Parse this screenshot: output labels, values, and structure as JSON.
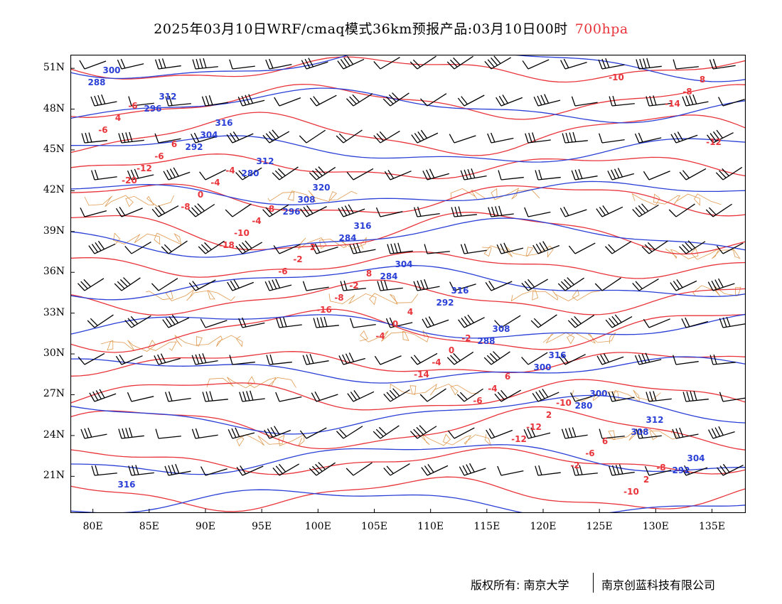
{
  "title": {
    "main": "2025年03月10日WRF/cmaq模式36km预报产品:03月10日00时",
    "level": "700hpa",
    "level_color": "#e8343a"
  },
  "colors": {
    "height_contour": "#2a3fd6",
    "temperature_contour": "#e8343a",
    "boundary": "#e09a50",
    "wind_barb": "#000000",
    "frame": "#000000"
  },
  "axes": {
    "lat_ticks": [
      "51N",
      "48N",
      "45N",
      "42N",
      "39N",
      "36N",
      "33N",
      "30N",
      "27N",
      "24N",
      "21N"
    ],
    "lon_ticks": [
      "80E",
      "85E",
      "90E",
      "95E",
      "100E",
      "105E",
      "110E",
      "115E",
      "120E",
      "125E",
      "130E",
      "135E"
    ],
    "lon_range": [
      78,
      138
    ],
    "lat_range": [
      18.3,
      52
    ]
  },
  "height_labels": [
    "288",
    "292",
    "296",
    "284",
    "288",
    "280",
    "292",
    "296",
    "280",
    "284",
    "292",
    "300",
    "308",
    "300",
    "304",
    "308",
    "304",
    "308",
    "300",
    "304",
    "312",
    "312",
    "316",
    "316",
    "316",
    "312",
    "316",
    "316",
    "320"
  ],
  "temperature_labels": [
    "-20",
    "-18",
    "-16",
    "-14",
    "-12",
    "-10",
    "-12",
    "-8",
    "-6",
    "-4",
    "-6",
    "-2",
    "-14",
    "-12",
    "-10",
    "-8",
    "-4",
    "-12",
    "-10",
    "-6",
    "0",
    "-2",
    "0",
    "-4",
    "-6",
    "-8",
    "-6",
    "-4",
    "-2",
    "0",
    "2",
    "2",
    "4",
    "-4",
    "2",
    "4",
    "6",
    "6",
    "8",
    "6",
    "8",
    "8",
    "-2",
    "-10",
    "-8",
    "-6",
    "-4"
  ],
  "footer": {
    "copyright": "版权所有: 南京大学",
    "company": "南京创蓝科技有限公司"
  }
}
